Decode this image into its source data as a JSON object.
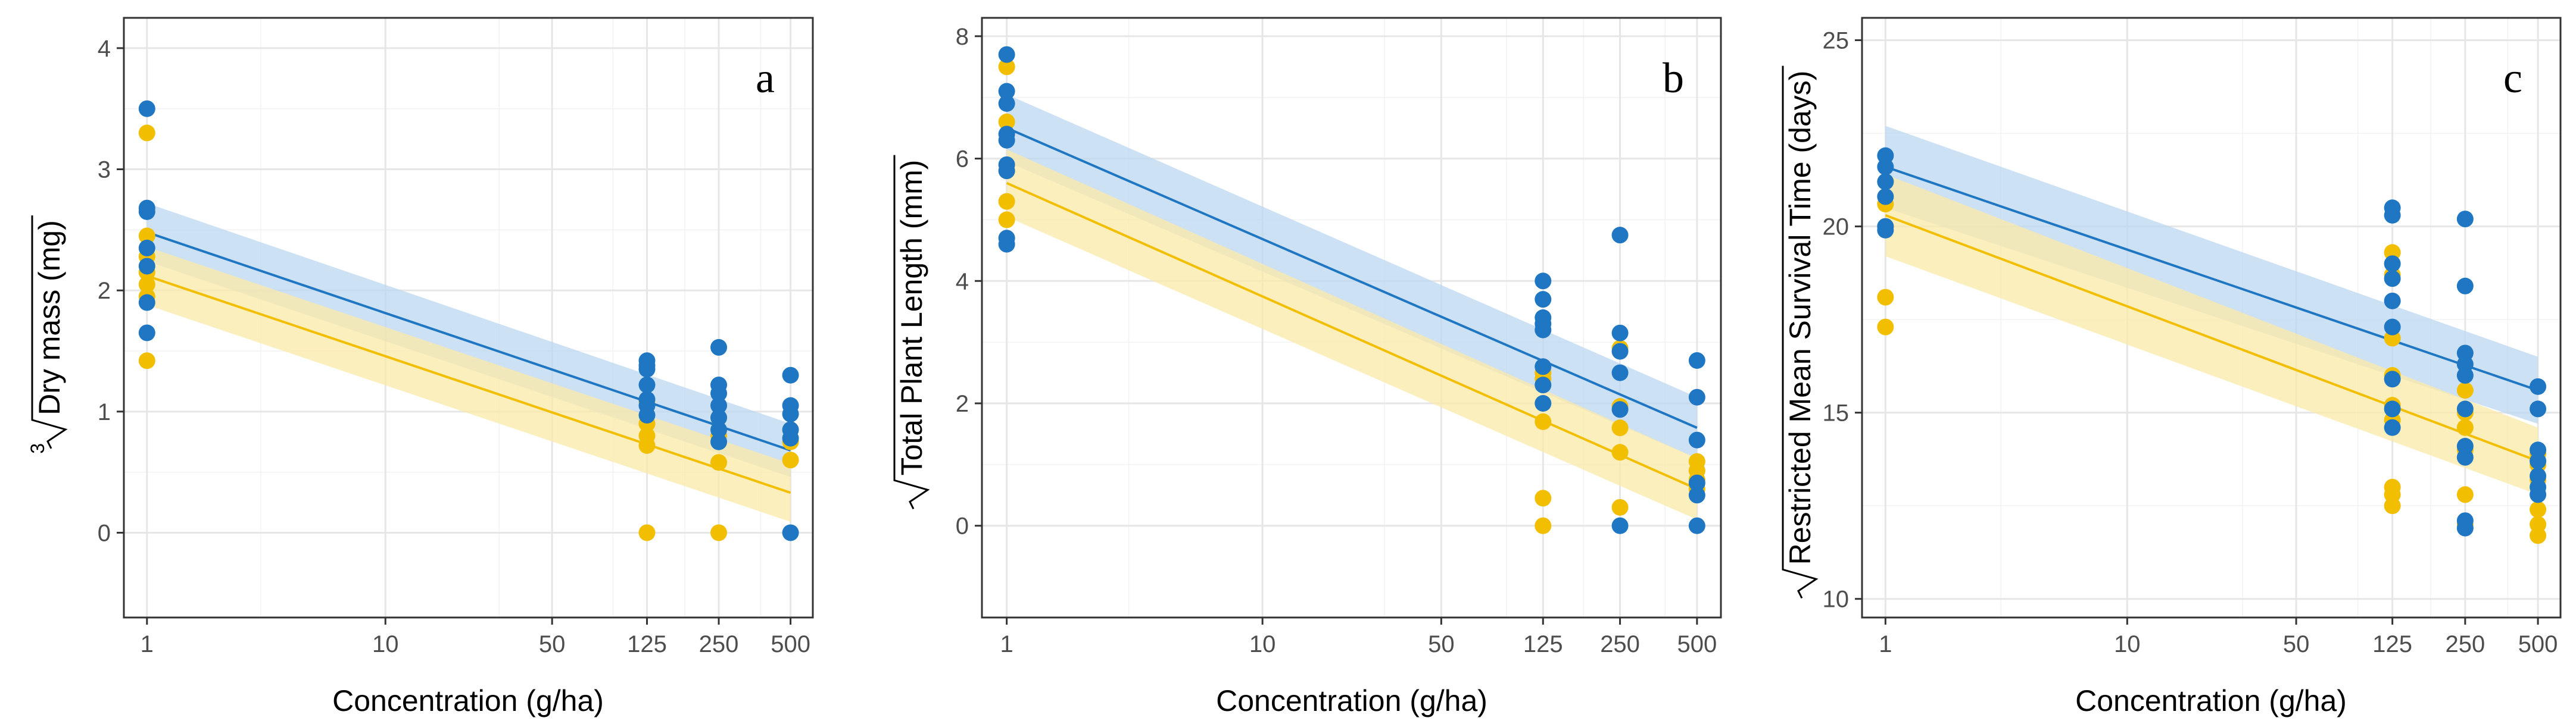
{
  "colors": {
    "blue": "#1f77c4",
    "yellow": "#f2be00",
    "blue_band": "#bcd7f0",
    "yellow_band": "#fbe9a8"
  },
  "chart_data": [
    {
      "type": "scatter",
      "panel_letter": "a",
      "title": "",
      "xlabel": "Concentration (g/ha)",
      "ylabel": "Dry mass (mg)",
      "ylabel_root": "3",
      "x_scale": "log10",
      "xlim": [
        0.8,
        620
      ],
      "x_ticks": [
        1,
        10,
        50,
        125,
        250,
        500
      ],
      "x_tick_labels": [
        "1",
        "10",
        "50",
        "125",
        "250",
        "500"
      ],
      "ylim": [
        -0.7,
        4.25
      ],
      "y_ticks": [
        0,
        1,
        2,
        3,
        4
      ],
      "y_tick_labels": [
        "0",
        "1",
        "2",
        "3",
        "4"
      ],
      "series": [
        {
          "name": "blue",
          "color": "#1f77c4",
          "line": [
            2.48,
            0.68
          ],
          "band_halfwidth": [
            0.24,
            0.22
          ],
          "points": [
            [
              1,
              3.5
            ],
            [
              1,
              2.68
            ],
            [
              1,
              2.65
            ],
            [
              1,
              2.35
            ],
            [
              1,
              2.2
            ],
            [
              1,
              1.9
            ],
            [
              1,
              1.65
            ],
            [
              125,
              1.42
            ],
            [
              125,
              1.38
            ],
            [
              125,
              1.35
            ],
            [
              125,
              1.22
            ],
            [
              125,
              1.1
            ],
            [
              125,
              1.05
            ],
            [
              125,
              0.97
            ],
            [
              250,
              1.53
            ],
            [
              250,
              1.22
            ],
            [
              250,
              1.15
            ],
            [
              250,
              1.05
            ],
            [
              250,
              0.95
            ],
            [
              250,
              0.85
            ],
            [
              250,
              0.75
            ],
            [
              500,
              1.3
            ],
            [
              500,
              1.05
            ],
            [
              500,
              0.98
            ],
            [
              500,
              0.85
            ],
            [
              500,
              0.78
            ],
            [
              500,
              0.0
            ]
          ]
        },
        {
          "name": "yellow",
          "color": "#f2be00",
          "line": [
            2.12,
            0.33
          ],
          "band_halfwidth": [
            0.24,
            0.24
          ],
          "points": [
            [
              1,
              3.3
            ],
            [
              1,
              2.45
            ],
            [
              1,
              2.28
            ],
            [
              1,
              2.15
            ],
            [
              1,
              2.05
            ],
            [
              1,
              1.95
            ],
            [
              1,
              1.42
            ],
            [
              125,
              1.08
            ],
            [
              125,
              0.9
            ],
            [
              125,
              0.8
            ],
            [
              125,
              0.72
            ],
            [
              125,
              0.0
            ],
            [
              250,
              0.95
            ],
            [
              250,
              0.8
            ],
            [
              250,
              0.58
            ],
            [
              250,
              0.0
            ],
            [
              500,
              0.85
            ],
            [
              500,
              0.75
            ],
            [
              500,
              0.6
            ]
          ]
        }
      ]
    },
    {
      "type": "scatter",
      "panel_letter": "b",
      "title": "",
      "xlabel": "Concentration (g/ha)",
      "ylabel": "Total Plant Length (mm)",
      "ylabel_root": "",
      "x_scale": "log10",
      "xlim": [
        0.8,
        620
      ],
      "x_ticks": [
        1,
        10,
        50,
        125,
        250,
        500
      ],
      "x_tick_labels": [
        "1",
        "10",
        "50",
        "125",
        "250",
        "500"
      ],
      "ylim": [
        -1.5,
        8.3
      ],
      "y_ticks": [
        0,
        2,
        4,
        6,
        8
      ],
      "y_tick_labels": [
        "0",
        "2",
        "4",
        "6",
        "8"
      ],
      "series": [
        {
          "name": "blue",
          "color": "#1f77c4",
          "line": [
            6.5,
            1.6
          ],
          "band_halfwidth": [
            0.55,
            0.5
          ],
          "points": [
            [
              1,
              7.7
            ],
            [
              1,
              7.1
            ],
            [
              1,
              6.9
            ],
            [
              1,
              6.4
            ],
            [
              1,
              6.3
            ],
            [
              1,
              5.9
            ],
            [
              1,
              5.8
            ],
            [
              1,
              4.7
            ],
            [
              1,
              4.6
            ],
            [
              125,
              4.0
            ],
            [
              125,
              3.7
            ],
            [
              125,
              3.4
            ],
            [
              125,
              3.3
            ],
            [
              125,
              3.2
            ],
            [
              125,
              2.6
            ],
            [
              125,
              2.3
            ],
            [
              125,
              2.0
            ],
            [
              250,
              4.75
            ],
            [
              250,
              3.15
            ],
            [
              250,
              2.85
            ],
            [
              250,
              2.5
            ],
            [
              250,
              1.9
            ],
            [
              250,
              0.0
            ],
            [
              500,
              2.7
            ],
            [
              500,
              2.1
            ],
            [
              500,
              1.4
            ],
            [
              500,
              0.7
            ],
            [
              500,
              0.5
            ],
            [
              500,
              0.0
            ]
          ]
        },
        {
          "name": "yellow",
          "color": "#f2be00",
          "line": [
            5.6,
            0.6
          ],
          "band_halfwidth": [
            0.55,
            0.5
          ],
          "points": [
            [
              1,
              7.5
            ],
            [
              1,
              6.6
            ],
            [
              1,
              5.8
            ],
            [
              1,
              5.3
            ],
            [
              1,
              5.0
            ],
            [
              1,
              4.7
            ],
            [
              125,
              2.5
            ],
            [
              125,
              2.4
            ],
            [
              125,
              1.7
            ],
            [
              125,
              0.45
            ],
            [
              125,
              0.0
            ],
            [
              250,
              2.9
            ],
            [
              250,
              1.95
            ],
            [
              250,
              1.6
            ],
            [
              250,
              1.2
            ],
            [
              250,
              0.3
            ],
            [
              500,
              1.05
            ],
            [
              500,
              0.9
            ],
            [
              500,
              0.75
            ],
            [
              500,
              0.6
            ]
          ]
        }
      ]
    },
    {
      "type": "scatter",
      "panel_letter": "c",
      "title": "",
      "xlabel": "Concentration (g/ha)",
      "ylabel": "Restricted Mean Survival Time (days)",
      "ylabel_root": "",
      "x_scale": "log10",
      "xlim": [
        0.8,
        620
      ],
      "x_ticks": [
        1,
        10,
        50,
        125,
        250,
        500
      ],
      "x_tick_labels": [
        "1",
        "10",
        "50",
        "125",
        "250",
        "500"
      ],
      "ylim": [
        9.5,
        25.6
      ],
      "y_ticks": [
        10,
        15,
        20,
        25
      ],
      "y_tick_labels": [
        "10",
        "15",
        "20",
        "25"
      ],
      "series": [
        {
          "name": "blue",
          "color": "#1f77c4",
          "line": [
            21.6,
            15.6
          ],
          "band_halfwidth": [
            1.1,
            0.9
          ],
          "points": [
            [
              1,
              21.9
            ],
            [
              1,
              21.6
            ],
            [
              1,
              21.2
            ],
            [
              1,
              20.8
            ],
            [
              1,
              20.0
            ],
            [
              1,
              19.9
            ],
            [
              125,
              20.5
            ],
            [
              125,
              20.3
            ],
            [
              125,
              19.0
            ],
            [
              125,
              18.6
            ],
            [
              125,
              18.0
            ],
            [
              125,
              17.3
            ],
            [
              125,
              15.9
            ],
            [
              125,
              15.1
            ],
            [
              125,
              14.6
            ],
            [
              250,
              20.2
            ],
            [
              250,
              18.4
            ],
            [
              250,
              16.6
            ],
            [
              250,
              16.3
            ],
            [
              250,
              16.0
            ],
            [
              250,
              15.1
            ],
            [
              250,
              14.1
            ],
            [
              250,
              13.8
            ],
            [
              250,
              12.1
            ],
            [
              250,
              11.9
            ],
            [
              500,
              15.7
            ],
            [
              500,
              15.1
            ],
            [
              500,
              14.0
            ],
            [
              500,
              13.7
            ],
            [
              500,
              13.3
            ],
            [
              500,
              13.0
            ],
            [
              500,
              12.8
            ]
          ]
        },
        {
          "name": "yellow",
          "color": "#f2be00",
          "line": [
            20.3,
            13.7
          ],
          "band_halfwidth": [
            1.1,
            0.9
          ],
          "points": [
            [
              1,
              21.2
            ],
            [
              1,
              20.6
            ],
            [
              1,
              20.0
            ],
            [
              1,
              18.1
            ],
            [
              1,
              17.3
            ],
            [
              125,
              19.3
            ],
            [
              125,
              18.7
            ],
            [
              125,
              17.0
            ],
            [
              125,
              16.0
            ],
            [
              125,
              15.2
            ],
            [
              125,
              14.8
            ],
            [
              125,
              13.0
            ],
            [
              125,
              12.8
            ],
            [
              125,
              12.5
            ],
            [
              250,
              15.6
            ],
            [
              250,
              15.0
            ],
            [
              250,
              14.6
            ],
            [
              250,
              14.0
            ],
            [
              250,
              12.8
            ],
            [
              250,
              12.0
            ],
            [
              500,
              13.9
            ],
            [
              500,
              13.6
            ],
            [
              500,
              13.2
            ],
            [
              500,
              12.4
            ],
            [
              500,
              12.0
            ],
            [
              500,
              11.7
            ]
          ]
        }
      ]
    }
  ]
}
